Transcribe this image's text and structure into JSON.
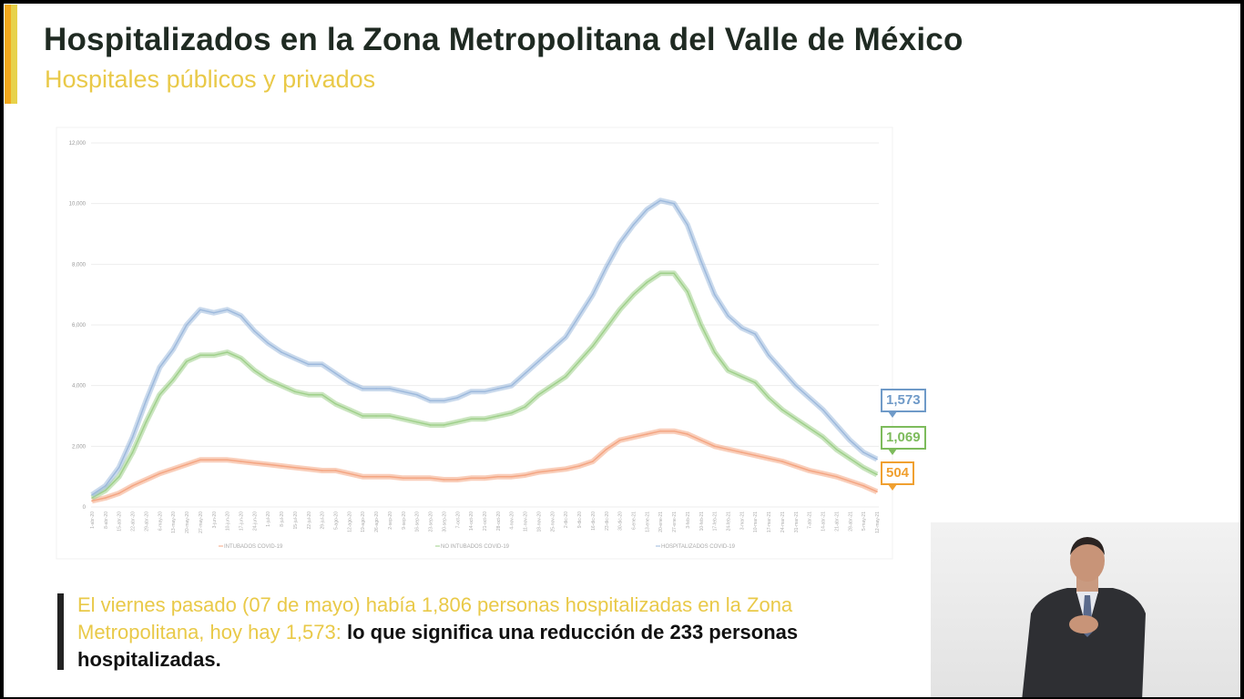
{
  "header": {
    "title": "Hospitalizados en la Zona Metropolitana del Valle de México",
    "subtitle": "Hospitales públicos y privados"
  },
  "chart_data": {
    "type": "line",
    "title": "",
    "xlabel": "",
    "ylabel": "",
    "ylim": [
      0,
      12000
    ],
    "yticks": [
      "0",
      "2,000",
      "4,000",
      "6,000",
      "8,000",
      "10,000",
      "12,000"
    ],
    "grid": true,
    "legend_position": "bottom",
    "x": [
      "1-abr-20",
      "8-abr-20",
      "15-abr-20",
      "22-abr-20",
      "29-abr-20",
      "6-may-20",
      "13-may-20",
      "20-may-20",
      "27-may-20",
      "3-jun-20",
      "10-jun-20",
      "17-jun-20",
      "24-jun-20",
      "1-jul-20",
      "8-jul-20",
      "15-jul-20",
      "22-jul-20",
      "29-jul-20",
      "5-ago-20",
      "12-ago-20",
      "19-ago-20",
      "26-ago-20",
      "2-sep-20",
      "9-sep-20",
      "16-sep-20",
      "23-sep-20",
      "30-sep-20",
      "7-oct-20",
      "14-oct-20",
      "21-oct-20",
      "28-oct-20",
      "4-nov-20",
      "11-nov-20",
      "18-nov-20",
      "25-nov-20",
      "2-dic-20",
      "9-dic-20",
      "16-dic-20",
      "23-dic-20",
      "30-dic-20",
      "6-ene-21",
      "13-ene-21",
      "20-ene-21",
      "27-ene-21",
      "3-feb-21",
      "10-feb-21",
      "17-feb-21",
      "24-feb-21",
      "3-mar-21",
      "10-mar-21",
      "17-mar-21",
      "24-mar-21",
      "31-mar-21",
      "7-abr-21",
      "14-abr-21",
      "21-abr-21",
      "28-abr-21",
      "5-may-21",
      "12-may-21"
    ],
    "series": [
      {
        "name": "INTUBADOS COVID-19",
        "color": "#f4a582",
        "last_label": "504",
        "label_color": "#f0a030",
        "values": [
          200,
          300,
          450,
          700,
          900,
          1100,
          1250,
          1400,
          1550,
          1550,
          1550,
          1500,
          1450,
          1400,
          1350,
          1300,
          1250,
          1200,
          1200,
          1100,
          1000,
          1000,
          1000,
          950,
          950,
          950,
          900,
          900,
          950,
          950,
          1000,
          1000,
          1050,
          1150,
          1200,
          1250,
          1350,
          1500,
          1900,
          2200,
          2300,
          2400,
          2500,
          2500,
          2400,
          2200,
          2000,
          1900,
          1800,
          1700,
          1600,
          1500,
          1350,
          1200,
          1100,
          1000,
          850,
          700,
          504
        ]
      },
      {
        "name": "NO INTUBADOS COVID-19",
        "color": "#9fd08a",
        "last_label": "1,069",
        "label_color": "#7dbb5c",
        "values": [
          300,
          550,
          1000,
          1800,
          2800,
          3700,
          4200,
          4800,
          5000,
          5000,
          5100,
          4900,
          4500,
          4200,
          4000,
          3800,
          3700,
          3700,
          3400,
          3200,
          3000,
          3000,
          3000,
          2900,
          2800,
          2700,
          2700,
          2800,
          2900,
          2900,
          3000,
          3100,
          3300,
          3700,
          4000,
          4300,
          4800,
          5300,
          5900,
          6500,
          7000,
          7400,
          7700,
          7700,
          7100,
          6000,
          5100,
          4500,
          4300,
          4100,
          3600,
          3200,
          2900,
          2600,
          2300,
          1900,
          1600,
          1300,
          1069
        ]
      },
      {
        "name": "HOSPITALIZADOS COVID-19",
        "color": "#9db9dc",
        "last_label": "1,573",
        "label_color": "#6f9ac8",
        "values": [
          400,
          700,
          1300,
          2300,
          3500,
          4600,
          5200,
          6000,
          6500,
          6400,
          6500,
          6300,
          5800,
          5400,
          5100,
          4900,
          4700,
          4700,
          4400,
          4100,
          3900,
          3900,
          3900,
          3800,
          3700,
          3500,
          3500,
          3600,
          3800,
          3800,
          3900,
          4000,
          4400,
          4800,
          5200,
          5600,
          6300,
          7000,
          7900,
          8700,
          9300,
          9800,
          10100,
          10000,
          9300,
          8100,
          7000,
          6300,
          5900,
          5700,
          5000,
          4500,
          4000,
          3600,
          3200,
          2700,
          2200,
          1800,
          1573
        ]
      }
    ]
  },
  "note": {
    "highlight": "El viernes pasado (07 de mayo) había 1,806 personas hospitalizadas en la Zona Metropolitana, hoy hay 1,573: ",
    "bold": "lo que significa una reducción de 233 personas hospitalizadas."
  }
}
